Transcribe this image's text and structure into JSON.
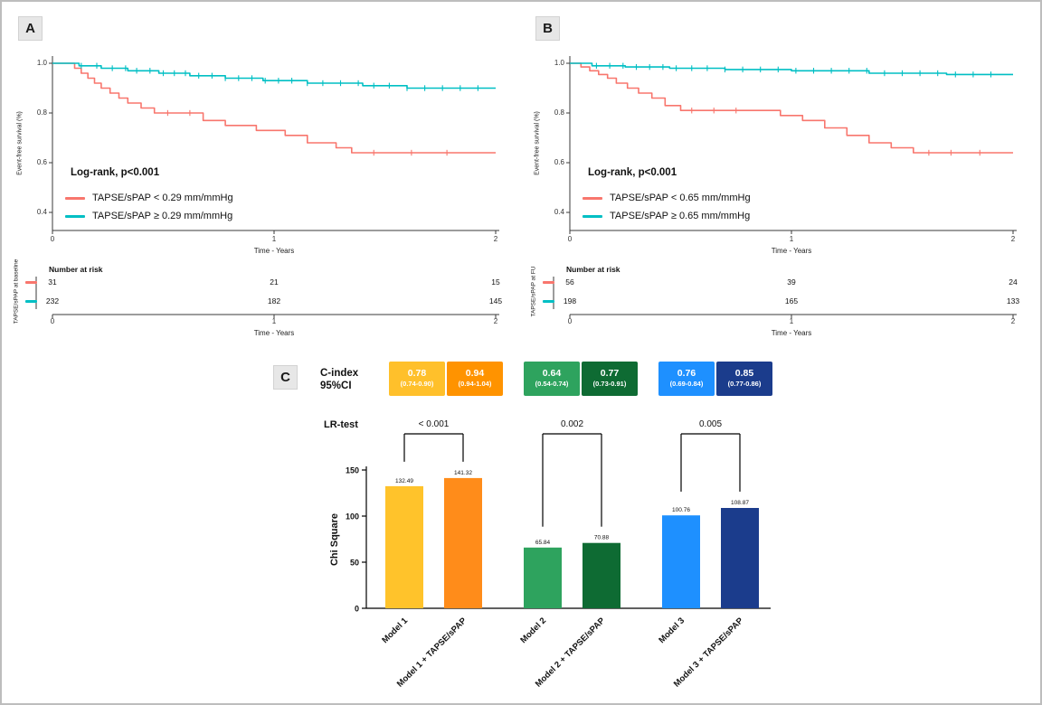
{
  "panel_a": {
    "label": "A",
    "ylabel": "Event-free survival (%)",
    "xlabel": "Time - Years",
    "logrank": "Log-rank, p<0.001",
    "yticks": [
      "1.0",
      "0.8",
      "0.6",
      "0.4"
    ],
    "xticks": [
      "0",
      "1",
      "2"
    ],
    "legend": [
      {
        "label": "TAPSE/sPAP < 0.29 mm/mmHg",
        "color": "#F8766D"
      },
      {
        "label": "TAPSE/sPAP ≥ 0.29 mm/mmHg",
        "color": "#00BFC4"
      }
    ],
    "risk": {
      "title": "Number at risk",
      "axis_label": "TAPSE/sPAP at baseline",
      "xlabel": "Time - Years",
      "rows": [
        {
          "color": "#F8766D",
          "values": [
            "31",
            "21",
            "15"
          ]
        },
        {
          "color": "#00BFC4",
          "values": [
            "232",
            "182",
            "145"
          ]
        }
      ]
    }
  },
  "panel_b": {
    "label": "B",
    "ylabel": "Event-free survival (%)",
    "xlabel": "Time - Years",
    "logrank": "Log-rank, p<0.001",
    "yticks": [
      "1.0",
      "0.8",
      "0.6",
      "0.4"
    ],
    "xticks": [
      "0",
      "1",
      "2"
    ],
    "legend": [
      {
        "label": "TAPSE/sPAP < 0.65 mm/mmHg",
        "color": "#F8766D"
      },
      {
        "label": "TAPSE/sPAP ≥ 0.65 mm/mmHg",
        "color": "#00BFC4"
      }
    ],
    "risk": {
      "title": "Number at risk",
      "axis_label": "TAPSE/sPAP at FU",
      "xlabel": "Time - Years",
      "rows": [
        {
          "color": "#F8766D",
          "values": [
            "56",
            "39",
            "24"
          ]
        },
        {
          "color": "#00BFC4",
          "values": [
            "198",
            "165",
            "133"
          ]
        }
      ]
    }
  },
  "panel_c": {
    "label": "C",
    "cindex_title": [
      "C-index",
      "95%CI"
    ],
    "lr_label": "LR-test",
    "ylabel": "Chi Square",
    "boxes": [
      {
        "value": "0.78",
        "ci": "(0.74-0.90)",
        "color": "#FFC02B"
      },
      {
        "value": "0.94",
        "ci": "(0.94-1.04)",
        "color": "#FF9300"
      },
      {
        "value": "0.64",
        "ci": "(0.54-0.74)",
        "color": "#2EA35E"
      },
      {
        "value": "0.77",
        "ci": "(0.73-0.91)",
        "color": "#0E6B33"
      },
      {
        "value": "0.76",
        "ci": "(0.69-0.84)",
        "color": "#1E90FF"
      },
      {
        "value": "0.85",
        "ci": "(0.77-0.86)",
        "color": "#1B3C8C"
      }
    ]
  },
  "chart_data": [
    {
      "type": "line",
      "title": "Kaplan-Meier event-free survival by TAPSE/sPAP at baseline (cutoff 0.29 mm/mmHg)",
      "xlabel": "Time - Years",
      "ylabel": "Event-free survival (%)",
      "xlim": [
        0,
        2
      ],
      "ylim": [
        0.35,
        1.0
      ],
      "grid": false,
      "legend_position": "inside-left",
      "annotations": [
        "Log-rank, p<0.001"
      ],
      "series": [
        {
          "name": "TAPSE/sPAP < 0.29 mm/mmHg",
          "color": "#F8766D",
          "step": true,
          "x": [
            0,
            0.1,
            0.13,
            0.16,
            0.19,
            0.22,
            0.26,
            0.3,
            0.34,
            0.4,
            0.46,
            0.68,
            0.78,
            0.92,
            1.05,
            1.15,
            1.28,
            1.35
          ],
          "y": [
            1.0,
            0.98,
            0.96,
            0.94,
            0.92,
            0.9,
            0.88,
            0.86,
            0.84,
            0.82,
            0.8,
            0.77,
            0.75,
            0.73,
            0.71,
            0.68,
            0.66,
            0.64
          ],
          "censor_x": [
            0.52,
            0.62,
            1.45,
            1.62,
            1.78
          ]
        },
        {
          "name": "TAPSE/sPAP ≥ 0.29 mm/mmHg",
          "color": "#00BFC4",
          "step": true,
          "x": [
            0,
            0.12,
            0.22,
            0.34,
            0.48,
            0.62,
            0.78,
            0.95,
            1.15,
            1.4,
            1.6
          ],
          "y": [
            1.0,
            0.99,
            0.98,
            0.97,
            0.96,
            0.95,
            0.94,
            0.93,
            0.92,
            0.91,
            0.9
          ],
          "censor_x": [
            0.13,
            0.2,
            0.27,
            0.33,
            0.38,
            0.44,
            0.5,
            0.55,
            0.6,
            0.66,
            0.72,
            0.78,
            0.84,
            0.9,
            0.96,
            1.02,
            1.08,
            1.15,
            1.22,
            1.3,
            1.38,
            1.45,
            1.52,
            1.6,
            1.68,
            1.76,
            1.84,
            1.92
          ]
        }
      ],
      "risk_table": {
        "title": "Number at risk",
        "x": [
          0,
          1,
          2
        ],
        "rows": [
          {
            "name": "TAPSE/sPAP < 0.29 mm/mmHg",
            "values": [
              31,
              21,
              15
            ]
          },
          {
            "name": "TAPSE/sPAP ≥ 0.29 mm/mmHg",
            "values": [
              232,
              182,
              145
            ]
          }
        ]
      }
    },
    {
      "type": "line",
      "title": "Kaplan-Meier event-free survival by TAPSE/sPAP at FU (cutoff 0.65 mm/mmHg)",
      "xlabel": "Time - Years",
      "ylabel": "Event-free survival (%)",
      "xlim": [
        0,
        2
      ],
      "ylim": [
        0.35,
        1.0
      ],
      "grid": false,
      "legend_position": "inside-left",
      "annotations": [
        "Log-rank, p<0.001"
      ],
      "series": [
        {
          "name": "TAPSE/sPAP < 0.65 mm/mmHg",
          "color": "#F8766D",
          "step": true,
          "x": [
            0,
            0.05,
            0.09,
            0.13,
            0.17,
            0.21,
            0.26,
            0.31,
            0.37,
            0.43,
            0.5,
            0.95,
            1.05,
            1.15,
            1.25,
            1.35,
            1.45,
            1.55
          ],
          "y": [
            1.0,
            0.985,
            0.97,
            0.955,
            0.94,
            0.92,
            0.9,
            0.88,
            0.86,
            0.83,
            0.81,
            0.79,
            0.77,
            0.74,
            0.71,
            0.68,
            0.66,
            0.64
          ],
          "censor_x": [
            0.55,
            0.65,
            0.75,
            1.62,
            1.72,
            1.85
          ]
        },
        {
          "name": "TAPSE/sPAP ≥ 0.65 mm/mmHg",
          "color": "#00BFC4",
          "step": true,
          "x": [
            0,
            0.1,
            0.25,
            0.45,
            0.7,
            1.0,
            1.35,
            1.7
          ],
          "y": [
            1.0,
            0.99,
            0.985,
            0.98,
            0.975,
            0.97,
            0.96,
            0.955
          ],
          "censor_x": [
            0.12,
            0.18,
            0.24,
            0.3,
            0.36,
            0.42,
            0.48,
            0.55,
            0.62,
            0.7,
            0.78,
            0.86,
            0.94,
            1.02,
            1.1,
            1.18,
            1.26,
            1.34,
            1.42,
            1.5,
            1.58,
            1.66,
            1.74,
            1.82,
            1.9
          ]
        }
      ],
      "risk_table": {
        "title": "Number at risk",
        "x": [
          0,
          1,
          2
        ],
        "rows": [
          {
            "name": "TAPSE/sPAP < 0.65 mm/mmHg",
            "values": [
              56,
              39,
              24
            ]
          },
          {
            "name": "TAPSE/sPAP ≥ 0.65 mm/mmHg",
            "values": [
              198,
              165,
              133
            ]
          }
        ]
      }
    },
    {
      "type": "bar",
      "title": "Incremental prognostic value of TAPSE/sPAP (LR-test)",
      "categories": [
        "Model 1",
        "Model 1 + TAPSE/sPAP",
        "Model 2",
        "Model 2 + TAPSE/sPAP",
        "Model 3",
        "Model 3 + TAPSE/sPAP"
      ],
      "values": [
        132.49,
        141.32,
        65.84,
        70.88,
        100.76,
        108.87
      ],
      "value_labels": [
        "132.49",
        "141.32",
        "65.84",
        "70.88",
        "100.76",
        "108.87"
      ],
      "bar_colors": [
        "#FFC32B",
        "#FF8C1A",
        "#2EA35E",
        "#0E6B33",
        "#1E90FF",
        "#1B3C8C"
      ],
      "xlabel": "",
      "ylabel": "Chi Square",
      "ylim": [
        0,
        150
      ],
      "yticks": [
        0,
        50,
        100,
        150
      ],
      "grid": false,
      "annotations": [
        {
          "text": "< 0.001",
          "between": [
            0,
            1
          ]
        },
        {
          "text": "0.002",
          "between": [
            2,
            3
          ]
        },
        {
          "text": "0.005",
          "between": [
            4,
            5
          ]
        }
      ],
      "cindex_boxes": [
        {
          "value": 0.78,
          "ci": "0.74-0.90"
        },
        {
          "value": 0.94,
          "ci": "0.94-1.04"
        },
        {
          "value": 0.64,
          "ci": "0.54-0.74"
        },
        {
          "value": 0.77,
          "ci": "0.73-0.91"
        },
        {
          "value": 0.76,
          "ci": "0.69-0.84"
        },
        {
          "value": 0.85,
          "ci": "0.77-0.86"
        }
      ]
    }
  ]
}
